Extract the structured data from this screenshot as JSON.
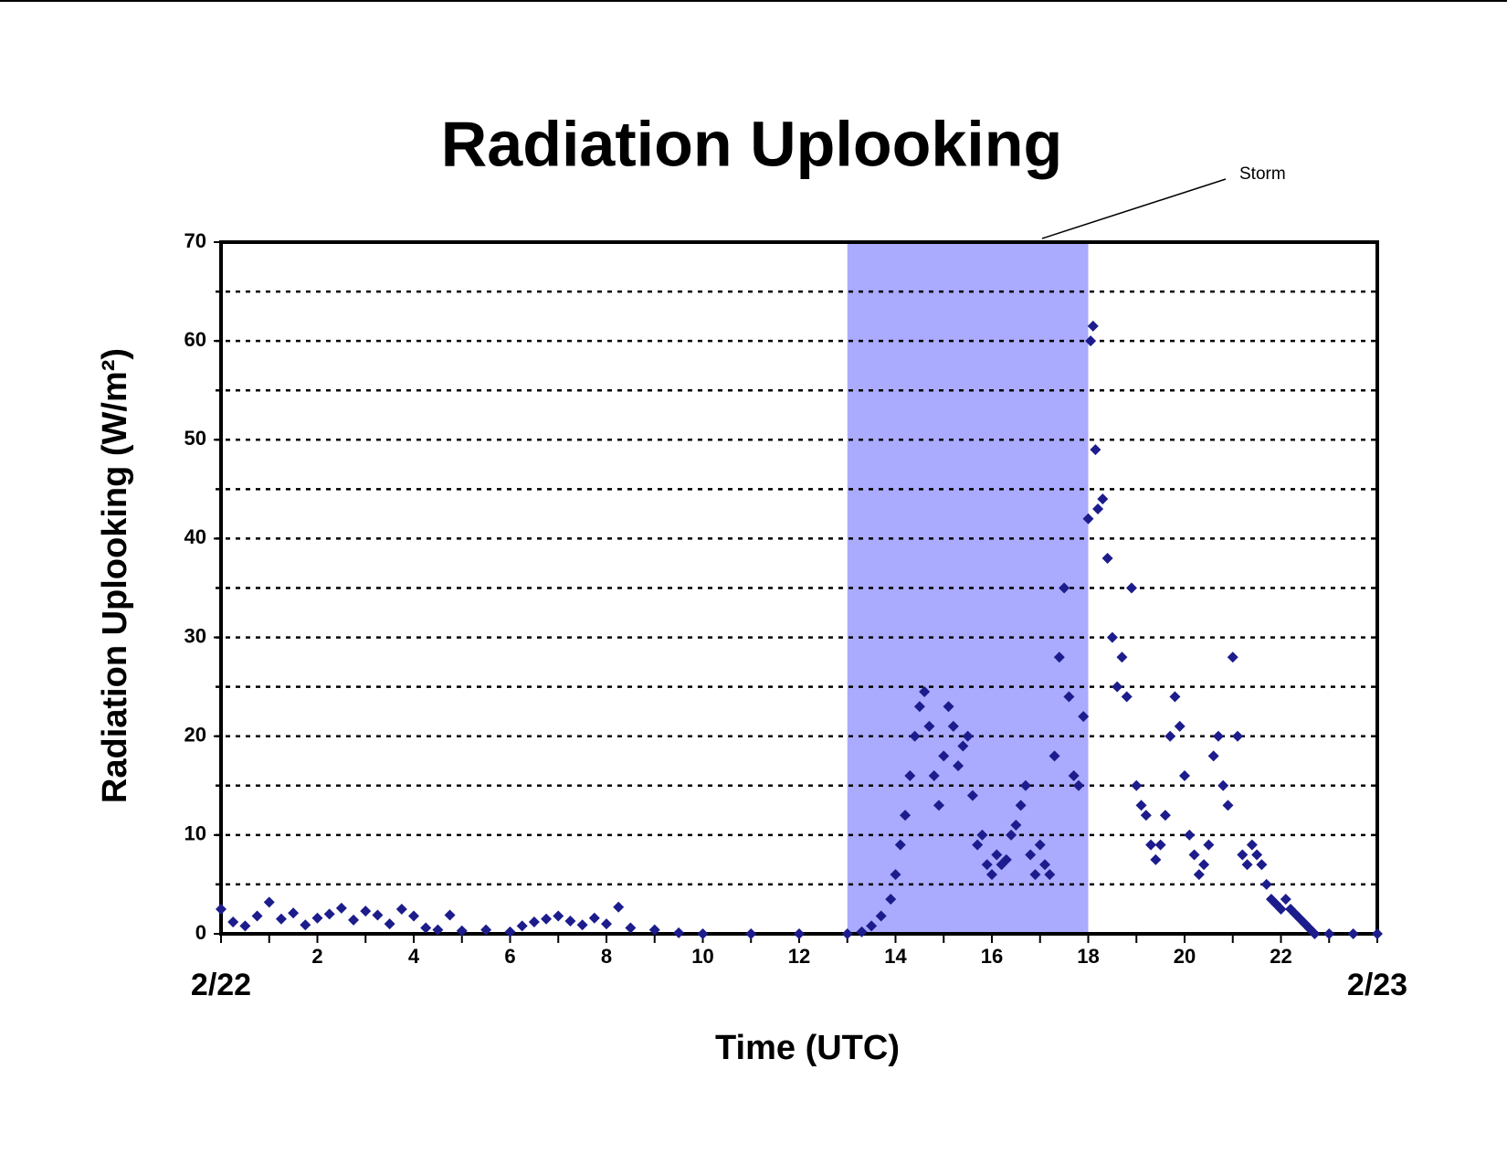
{
  "chart_data": {
    "type": "scatter",
    "title": "Radiation Uplooking",
    "xlabel": "Time (UTC)",
    "ylabel": "Radiation Uplooking (W/m²)",
    "annotation": "Storm",
    "shade": {
      "xlim": [
        13,
        18
      ],
      "color": "#aaaaff"
    },
    "xlim": [
      0,
      24
    ],
    "xticks": [
      {
        "value": 0,
        "label": "2/22"
      },
      2,
      4,
      6,
      8,
      10,
      12,
      14,
      16,
      18,
      20,
      22,
      {
        "value": 24,
        "label": "2/23"
      }
    ],
    "ylim": [
      0,
      70
    ],
    "yticks": [
      0,
      10,
      20,
      30,
      40,
      50,
      60,
      70
    ],
    "ygrid": [
      5,
      10,
      15,
      20,
      25,
      30,
      35,
      40,
      45,
      50,
      55,
      60,
      65
    ],
    "grid": true,
    "series": [
      {
        "name": "Radiation",
        "color": "#1c1c8c",
        "x": [
          0,
          0.25,
          0.5,
          0.75,
          1,
          1.25,
          1.5,
          1.75,
          2,
          2.25,
          2.5,
          2.75,
          3,
          3.25,
          3.5,
          3.75,
          4,
          4.25,
          4.5,
          4.75,
          5,
          5.5,
          6,
          6.25,
          6.5,
          6.75,
          7,
          7.25,
          7.5,
          7.75,
          8,
          8.25,
          8.5,
          9,
          9.5,
          10,
          11,
          12,
          13,
          13.3,
          13.5,
          13.7,
          13.9,
          14,
          14.1,
          14.2,
          14.3,
          14.4,
          14.5,
          14.6,
          14.7,
          14.8,
          14.9,
          15,
          15.1,
          15.2,
          15.3,
          15.4,
          15.5,
          15.6,
          15.7,
          15.8,
          15.9,
          16,
          16.1,
          16.2,
          16.3,
          16.4,
          16.5,
          16.6,
          16.7,
          16.8,
          16.9,
          17,
          17.1,
          17.2,
          17.3,
          17.4,
          17.5,
          17.6,
          17.7,
          17.8,
          17.9,
          18,
          18.05,
          18.1,
          18.15,
          18.2,
          18.3,
          18.4,
          18.5,
          18.6,
          18.7,
          18.8,
          18.9,
          19,
          19.1,
          19.2,
          19.3,
          19.4,
          19.5,
          19.6,
          19.7,
          19.8,
          19.9,
          20,
          20.1,
          20.2,
          20.3,
          20.4,
          20.5,
          20.6,
          20.7,
          20.8,
          20.9,
          21,
          21.1,
          21.2,
          21.3,
          21.4,
          21.5,
          21.6,
          21.7,
          21.8,
          21.9,
          22,
          22.1,
          22.2,
          22.3,
          22.4,
          22.5,
          22.6,
          22.7,
          23,
          23.5,
          24
        ],
        "values": [
          2.5,
          1.2,
          0.8,
          1.8,
          3.2,
          1.5,
          2.1,
          0.9,
          1.6,
          2,
          2.6,
          1.4,
          2.3,
          1.9,
          1,
          2.5,
          1.8,
          0.6,
          0.4,
          1.9,
          0.3,
          0.4,
          0.2,
          0.8,
          1.2,
          1.5,
          1.8,
          1.3,
          0.9,
          1.6,
          1,
          2.7,
          0.6,
          0.4,
          0.1,
          0,
          0,
          0,
          0,
          0.2,
          0.8,
          1.8,
          3.5,
          6,
          9,
          12,
          16,
          20,
          23,
          24.5,
          21,
          16,
          13,
          18,
          23,
          21,
          17,
          19,
          20,
          14,
          9,
          10,
          7,
          6,
          8,
          7,
          7.5,
          10,
          11,
          13,
          15,
          8,
          6,
          9,
          7,
          6,
          18,
          28,
          35,
          24,
          16,
          15,
          22,
          42,
          60,
          61.5,
          49,
          43,
          44,
          38,
          30,
          25,
          28,
          24,
          35,
          15,
          13,
          12,
          9,
          7.5,
          9,
          12,
          20,
          24,
          21,
          16,
          10,
          8,
          6,
          7,
          9,
          18,
          20,
          15,
          13,
          28,
          20,
          8,
          7,
          9,
          8,
          7,
          5,
          3.5,
          3,
          2.5,
          3.5,
          2.5,
          2,
          1.5,
          1,
          0.5,
          0,
          0,
          0,
          0
        ]
      }
    ]
  }
}
